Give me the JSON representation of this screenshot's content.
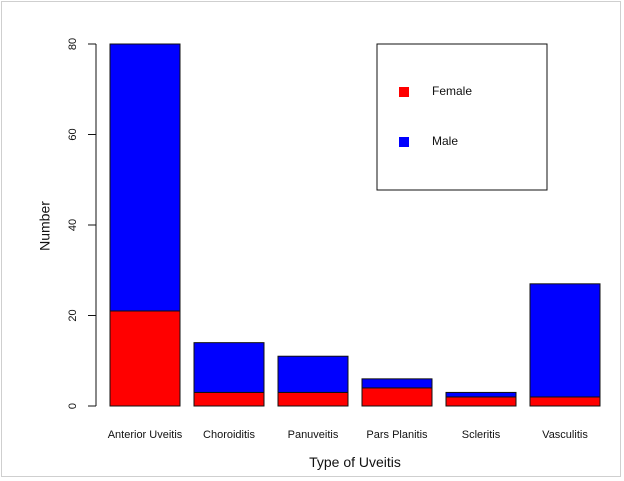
{
  "chart_data": {
    "type": "bar",
    "stacked": true,
    "categories": [
      "Anterior Uveitis",
      "Choroiditis",
      "Panuveitis",
      "Pars Planitis",
      "Scleritis",
      "Vasculitis"
    ],
    "series": [
      {
        "name": "Female",
        "color": "#ff0000",
        "values": [
          21,
          3,
          3,
          4,
          2,
          2
        ]
      },
      {
        "name": "Male",
        "color": "#0000ff",
        "values": [
          59,
          11,
          8,
          2,
          1,
          25
        ]
      }
    ],
    "totals": [
      80,
      14,
      11,
      6,
      3,
      27
    ],
    "title": "",
    "xlabel": "Type of Uveitis",
    "ylabel": "Number",
    "ylim": [
      0,
      80
    ],
    "yticks": [
      0,
      20,
      40,
      60,
      80
    ],
    "grid": false,
    "legend": {
      "placement": "top-right",
      "entries": [
        {
          "label": "Female",
          "color": "#ff0000"
        },
        {
          "label": "Male",
          "color": "#0000ff"
        }
      ]
    }
  }
}
